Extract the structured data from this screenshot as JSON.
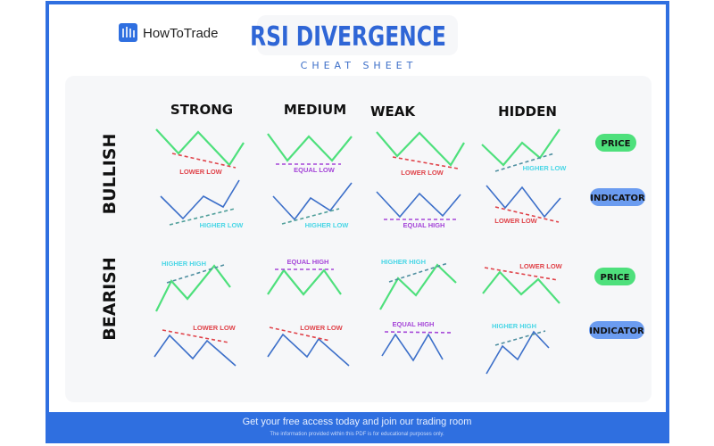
{
  "brand": {
    "name": "HowToTrade",
    "logo_icon": "bar-chart-icon"
  },
  "title": "RSI DIVERGENCE",
  "subtitle": "CHEAT SHEET",
  "columns": [
    "STRONG",
    "MEDIUM",
    "WEAK",
    "HIDDEN"
  ],
  "rows": {
    "bullish": "BULLISH",
    "bearish": "BEARISH"
  },
  "pills": {
    "price": "PRICE",
    "indicator": "INDICATOR"
  },
  "labels": {
    "bullish_price": [
      "LOWER LOW",
      "EQUAL LOW",
      "LOWER LOW",
      "HIGHER LOW"
    ],
    "bullish_indicator": [
      "HIGHER LOW",
      "HIGHER LOW",
      "EQUAL HIGH",
      "LOWER LOW"
    ],
    "bearish_price": [
      "HIGHER HIGH",
      "EQUAL HIGH",
      "HIGHER HIGH",
      "LOWER LOW"
    ],
    "bearish_indicator": [
      "LOWER LOW",
      "LOWER LOW",
      "EQUAL HIGH",
      "HIGHER HIGH"
    ]
  },
  "footer": {
    "cta": "Get your free access today and join our trading room",
    "disclaimer": "The information provided within this PDF is for educational purposes only."
  },
  "colors": {
    "brand_blue": "#2f6fe0",
    "price_green": "#4ee07c",
    "indicator_blue": "#3c6fc9",
    "lower_red": "#e0434a",
    "equal_purple": "#a546d8",
    "higher_cyan": "#49d6e6"
  }
}
